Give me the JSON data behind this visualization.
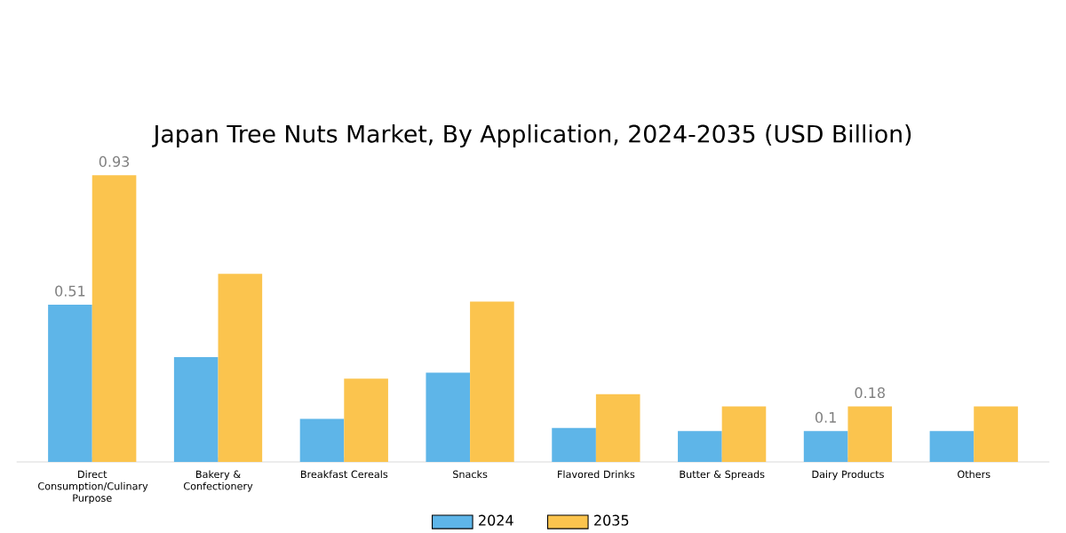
{
  "chart_data": {
    "type": "bar",
    "title": "Japan Tree Nuts Market, By Application, 2024-2035 (USD Billion)",
    "categories": [
      "Direct Consumption/Culinary Purpose",
      "Bakery & Confectionery",
      "Breakfast Cereals",
      "Snacks",
      "Flavored Drinks",
      "Butter & Spreads",
      "Dairy Products",
      "Others"
    ],
    "series": [
      {
        "name": "2024",
        "color": "#5eb5e8",
        "values": [
          0.51,
          0.34,
          0.14,
          0.29,
          0.11,
          0.1,
          0.1,
          0.1
        ],
        "value_labels": [
          "0.51",
          null,
          null,
          null,
          null,
          null,
          "0.1",
          null
        ]
      },
      {
        "name": "2035",
        "color": "#fbc44e",
        "values": [
          0.93,
          0.61,
          0.27,
          0.52,
          0.22,
          0.18,
          0.18,
          0.18
        ],
        "value_labels": [
          "0.93",
          null,
          null,
          null,
          null,
          null,
          "0.18",
          null
        ]
      }
    ],
    "legend": "bottom"
  }
}
